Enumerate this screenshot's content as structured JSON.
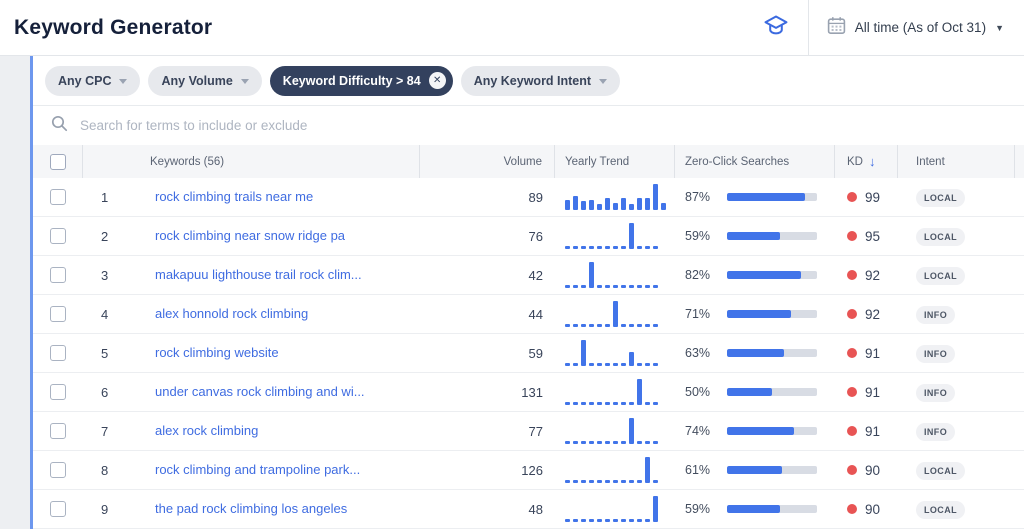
{
  "header": {
    "title": "Keyword Generator",
    "date_range": "All time (As of Oct 31)",
    "edu_icon": "graduation-cap",
    "date_icon": "calendar"
  },
  "filters": {
    "chips": [
      {
        "name": "any-cpc",
        "label": "Any CPC",
        "type": "dropdown",
        "active": false
      },
      {
        "name": "any-volume",
        "label": "Any Volume",
        "type": "dropdown",
        "active": false
      },
      {
        "name": "keyword-difficulty",
        "label": "Keyword Difficulty > 84",
        "type": "removable",
        "active": true
      },
      {
        "name": "any-keyword-intent",
        "label": "Any Keyword Intent",
        "type": "dropdown",
        "active": false
      }
    ]
  },
  "search": {
    "placeholder": "Search for terms to include or exclude"
  },
  "table": {
    "headers": {
      "keywords": "Keywords (56)",
      "volume": "Volume",
      "yearly_trend": "Yearly Trend",
      "zero_click": "Zero-Click Searches",
      "kd": "KD",
      "kd_sort": "descending",
      "intent": "Intent"
    },
    "rows": [
      {
        "rank": 1,
        "keyword": "rock climbing trails near me",
        "volume": 89,
        "trend": [
          0.38,
          0.52,
          0.33,
          0.38,
          0.22,
          0.45,
          0.28,
          0.45,
          0.22,
          0.45,
          0.45,
          1,
          0.28
        ],
        "zero_click": "87%",
        "zero_click_pct": 87,
        "kd": 99,
        "intent": "LOCAL"
      },
      {
        "rank": 2,
        "keyword": "rock climbing near snow ridge pa",
        "volume": 76,
        "trend": [
          0.08,
          0.08,
          0.08,
          0.08,
          0.08,
          0.08,
          0.08,
          0.08,
          1,
          0.08,
          0.08,
          0.08
        ],
        "zero_click": "59%",
        "zero_click_pct": 59,
        "kd": 95,
        "intent": "LOCAL"
      },
      {
        "rank": 3,
        "keyword": "makapuu lighthouse trail rock clim...",
        "volume": 42,
        "trend": [
          0.08,
          0.08,
          0.08,
          1,
          0.08,
          0.08,
          0.08,
          0.08,
          0.08,
          0.08,
          0.08,
          0.08
        ],
        "zero_click": "82%",
        "zero_click_pct": 82,
        "kd": 92,
        "intent": "LOCAL"
      },
      {
        "rank": 4,
        "keyword": "alex honnold rock climbing",
        "volume": 44,
        "trend": [
          0.08,
          0.08,
          0.08,
          0.08,
          0.08,
          0.08,
          1,
          0.08,
          0.08,
          0.08,
          0.08,
          0.08
        ],
        "zero_click": "71%",
        "zero_click_pct": 71,
        "kd": 92,
        "intent": "INFO"
      },
      {
        "rank": 5,
        "keyword": "rock climbing website",
        "volume": 59,
        "trend": [
          0.08,
          0.08,
          1,
          0.08,
          0.08,
          0.08,
          0.08,
          0.08,
          0.55,
          0.08,
          0.08,
          0.08
        ],
        "zero_click": "63%",
        "zero_click_pct": 63,
        "kd": 91,
        "intent": "INFO"
      },
      {
        "rank": 6,
        "keyword": "under canvas rock climbing and wi...",
        "volume": 131,
        "trend": [
          0.08,
          0.08,
          0.08,
          0.08,
          0.08,
          0.08,
          0.08,
          0.08,
          0.08,
          1,
          0.08,
          0.08
        ],
        "zero_click": "50%",
        "zero_click_pct": 50,
        "kd": 91,
        "intent": "INFO"
      },
      {
        "rank": 7,
        "keyword": "alex rock climbing",
        "volume": 77,
        "trend": [
          0.08,
          0.08,
          0.08,
          0.08,
          0.08,
          0.08,
          0.08,
          0.08,
          1,
          0.08,
          0.08,
          0.08
        ],
        "zero_click": "74%",
        "zero_click_pct": 74,
        "kd": 91,
        "intent": "INFO"
      },
      {
        "rank": 8,
        "keyword": "rock climbing and trampoline park...",
        "volume": 126,
        "trend": [
          0.08,
          0.08,
          0.08,
          0.08,
          0.08,
          0.08,
          0.08,
          0.08,
          0.08,
          0.08,
          1,
          0.08
        ],
        "zero_click": "61%",
        "zero_click_pct": 61,
        "kd": 90,
        "intent": "LOCAL"
      },
      {
        "rank": 9,
        "keyword": "the pad rock climbing los angeles",
        "volume": 48,
        "trend": [
          0.08,
          0.08,
          0.08,
          0.08,
          0.08,
          0.08,
          0.08,
          0.08,
          0.08,
          0.08,
          0.08,
          1
        ],
        "zero_click": "59%",
        "zero_click_pct": 59,
        "kd": 90,
        "intent": "LOCAL"
      }
    ]
  },
  "colors": {
    "accent_blue": "#4174e9",
    "kd_dot_red": "#e85454",
    "active_chip_bg": "#33415e",
    "bar_track": "#d8dce4",
    "link_blue": "#3f6ce1"
  }
}
